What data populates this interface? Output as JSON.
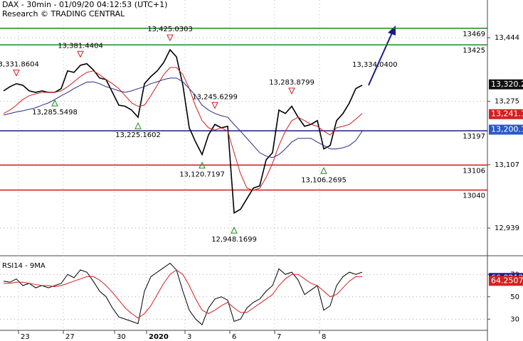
{
  "header": {
    "title": "DAX - 30min - 01/09/20 04:12:53 (UTC+1)",
    "subtitle": "Research © TRADING CENTRAL",
    "last_label": "13,334.0400"
  },
  "chart_data": [
    {
      "type": "line",
      "categories": [
        null,
        null,
        null,
        "23",
        null,
        null,
        null,
        null,
        null,
        null,
        "27",
        null,
        null,
        null,
        null,
        null,
        null,
        null,
        "30",
        null,
        null,
        null,
        null,
        "2020",
        null,
        null,
        null,
        null,
        null,
        "3",
        null,
        null,
        null,
        null,
        null,
        null,
        "6",
        null,
        null,
        null,
        null,
        null,
        null,
        "7",
        null,
        null,
        null,
        null,
        null,
        null,
        "8",
        null,
        null,
        null,
        null,
        null,
        null
      ],
      "series": [
        {
          "name": "price",
          "color": "#000000",
          "values": [
            13303,
            13314,
            13322,
            13318,
            13303,
            13299,
            13303,
            13299,
            13299,
            13309,
            13356,
            13352,
            13371,
            13375,
            13359,
            13337,
            13333,
            13299,
            13265,
            13262,
            13252,
            13233,
            13322,
            13341,
            13356,
            13378,
            13412,
            13393,
            13318,
            13205,
            13167,
            13134,
            13186,
            13214,
            13205,
            13209,
            12979,
            12989,
            13017,
            13045,
            13051,
            13120,
            13139,
            13252,
            13243,
            13262,
            13233,
            13209,
            13214,
            13224,
            13149,
            13158,
            13224,
            13243,
            13271,
            13309,
            13318
          ]
        },
        {
          "name": "ma-fast",
          "color": "#d42020",
          "values": [
            13243,
            13252,
            13265,
            13280,
            13290,
            13295,
            13299,
            13299,
            13299,
            13303,
            13314,
            13327,
            13341,
            13352,
            13356,
            13346,
            13333,
            13322,
            13309,
            13290,
            13271,
            13262,
            13265,
            13290,
            13318,
            13346,
            13365,
            13365,
            13346,
            13309,
            13262,
            13224,
            13205,
            13199,
            13205,
            13196,
            13139,
            13083,
            13045,
            13039,
            13045,
            13073,
            13111,
            13158,
            13196,
            13224,
            13233,
            13224,
            13214,
            13209,
            13196,
            13186,
            13205,
            13209,
            13214,
            13228,
            13243
          ]
        },
        {
          "name": "ma-slow",
          "color": "#2a2a8a",
          "values": [
            13239,
            13243,
            13247,
            13250,
            13254,
            13258,
            13265,
            13271,
            13280,
            13290,
            13299,
            13309,
            13318,
            13326,
            13327,
            13322,
            13314,
            13309,
            13303,
            13299,
            13303,
            13309,
            13314,
            13322,
            13327,
            13333,
            13337,
            13337,
            13327,
            13309,
            13290,
            13265,
            13252,
            13243,
            13237,
            13233,
            13214,
            13196,
            13177,
            13158,
            13139,
            13130,
            13126,
            13134,
            13149,
            13167,
            13177,
            13177,
            13177,
            13167,
            13158,
            13149,
            13149,
            13152,
            13158,
            13171,
            13196
          ]
        }
      ],
      "ylim": [
        12875,
        13544
      ],
      "yticks": [
        {
          "value": 13444,
          "label": "13,444"
        },
        {
          "value": 13275,
          "label": "13,275"
        },
        {
          "value": 13107,
          "label": "13,107"
        },
        {
          "value": 12939,
          "label": "12,939"
        }
      ],
      "levels": [
        {
          "value": 13469,
          "color": "#1e8a1e"
        },
        {
          "value": 13425,
          "color": "#1e8a1e"
        },
        {
          "value": 13197,
          "color": "#1a1a8c"
        },
        {
          "value": 13106,
          "color": "#d01818"
        },
        {
          "value": 13040,
          "color": "#d01818"
        }
      ],
      "price_tags": [
        {
          "value": 13320.2,
          "label": "13,320.2",
          "color": "#111111"
        },
        {
          "value": 13241.1,
          "label": "13,241.1",
          "color": "#d42020"
        },
        {
          "value": 13200.1,
          "label": "13,200.1",
          "color": "#2a58c8"
        }
      ],
      "annotations": [
        {
          "label": "13,331.8604",
          "value": 13331.8604,
          "index": 2,
          "direction": "down"
        },
        {
          "label": "13,285.5498",
          "value": 13285.5498,
          "index": 8,
          "direction": "up"
        },
        {
          "label": "13,381.4404",
          "value": 13381.4404,
          "index": 12,
          "direction": "down"
        },
        {
          "label": "13,225.1602",
          "value": 13225.1602,
          "index": 21,
          "direction": "up"
        },
        {
          "label": "13,425.0303",
          "value": 13425.0303,
          "index": 26,
          "direction": "down"
        },
        {
          "label": "13,245.6299",
          "value": 13245.6299,
          "index": 33,
          "direction": "down"
        },
        {
          "label": "13,120.7197",
          "value": 13120.7197,
          "index": 31,
          "direction": "up"
        },
        {
          "label": "12,948.1699",
          "value": 12948.1699,
          "index": 36,
          "direction": "up"
        },
        {
          "label": "13,283.8799",
          "value": 13283.8799,
          "index": 45,
          "direction": "down"
        },
        {
          "label": "13,106.2695",
          "value": 13106.2695,
          "index": 50,
          "direction": "up"
        }
      ]
    },
    {
      "type": "line",
      "title": "RSI14 - 9MA",
      "series": [
        {
          "name": "rsi",
          "color": "#000000",
          "values": [
            64,
            63,
            66,
            60,
            62,
            58,
            60,
            58,
            60,
            62,
            70,
            67,
            74,
            72,
            64,
            55,
            50,
            40,
            32,
            30,
            28,
            26,
            55,
            68,
            72,
            76,
            80,
            74,
            55,
            38,
            30,
            25,
            40,
            48,
            50,
            47,
            28,
            30,
            40,
            45,
            48,
            55,
            60,
            75,
            70,
            72,
            65,
            52,
            56,
            60,
            38,
            42,
            60,
            68,
            72,
            70,
            72
          ]
        },
        {
          "name": "ma",
          "color": "#d42020",
          "values": [
            62,
            62,
            63,
            63,
            62,
            61,
            60,
            60,
            59,
            60,
            62,
            64,
            66,
            68,
            68,
            65,
            60,
            54,
            47,
            40,
            35,
            31,
            35,
            42,
            52,
            62,
            70,
            74,
            70,
            60,
            48,
            38,
            35,
            38,
            42,
            45,
            40,
            36,
            36,
            40,
            44,
            48,
            52,
            60,
            66,
            70,
            70,
            66,
            62,
            60,
            55,
            50,
            52,
            58,
            64,
            68,
            68
          ]
        }
      ],
      "ylim": [
        20,
        83.5
      ],
      "yticks": [
        30,
        50,
        70
      ],
      "price_tags": [
        {
          "value": 66.8212,
          "color": "#1a1a8c"
        },
        {
          "value": 64.2507,
          "color": "#d42020"
        }
      ]
    }
  ]
}
